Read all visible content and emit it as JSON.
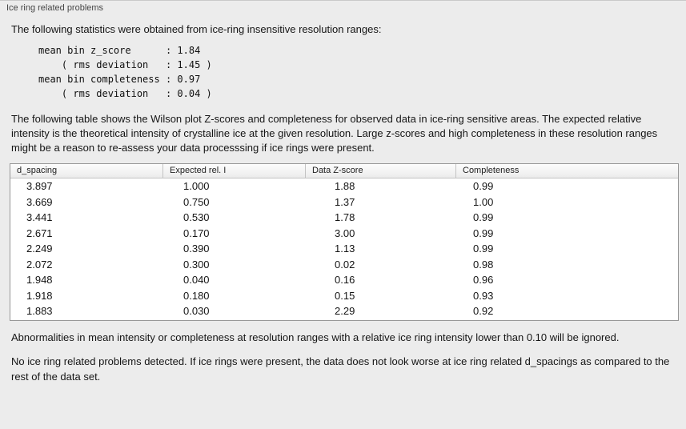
{
  "panel": {
    "title": "Ice ring related problems"
  },
  "intro": "The following statistics were obtained from ice-ring insensitive resolution ranges:",
  "stats_block": {
    "lines": [
      "mean bin z_score      : 1.84",
      "    ( rms deviation   : 1.45 )",
      "mean bin completeness : 0.97",
      "    ( rms deviation   : 0.04 )"
    ]
  },
  "description": "The following table shows the Wilson plot Z-scores and completeness for observed data in ice-ring sensitive areas. The expected relative intensity is the theoretical intensity of crystalline ice at the given resolution. Large z-scores and high completeness in these resolution ranges might be a reason to re-assess your data processsing if ice rings were present.",
  "table": {
    "columns": [
      "d_spacing",
      "Expected rel. I",
      "Data Z-score",
      "Completeness"
    ],
    "rows": [
      [
        "3.897",
        "1.000",
        "1.88",
        "0.99"
      ],
      [
        "3.669",
        "0.750",
        "1.37",
        "1.00"
      ],
      [
        "3.441",
        "0.530",
        "1.78",
        "0.99"
      ],
      [
        "2.671",
        "0.170",
        "3.00",
        "0.99"
      ],
      [
        "2.249",
        "0.390",
        "1.13",
        "0.99"
      ],
      [
        "2.072",
        "0.300",
        "0.02",
        "0.98"
      ],
      [
        "1.948",
        "0.040",
        "0.16",
        "0.96"
      ],
      [
        "1.918",
        "0.180",
        "0.15",
        "0.93"
      ],
      [
        "1.883",
        "0.030",
        "2.29",
        "0.92"
      ]
    ]
  },
  "footnote_ignore": "Abnormalities in mean intensity or completeness at resolution ranges with a relative ice ring intensity lower than 0.10 will be ignored.",
  "footnote_result": "No ice ring related problems detected. If ice rings were present, the data does not look worse at ice ring related d_spacings as compared to the rest of the data set.",
  "colors": {
    "background": "#ececec",
    "table_background": "#ffffff",
    "table_border": "#979797",
    "header_separator": "#c3c3c3",
    "text": "#151515"
  }
}
